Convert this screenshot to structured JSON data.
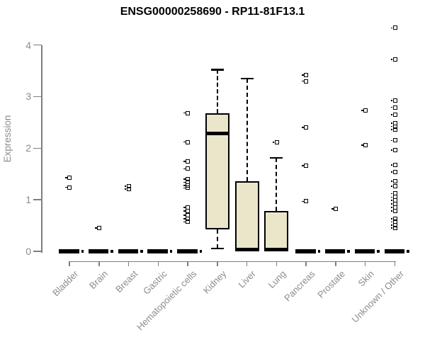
{
  "window": {
    "background": "#ffffff"
  },
  "chart_data": {
    "type": "boxplot",
    "title": "ENSG00000258690 - RP11-81F13.1",
    "ylabel": "Expression",
    "xlabel": "",
    "ylim": [
      0,
      4.4
    ],
    "yticks": [
      0,
      1,
      2,
      3,
      4
    ],
    "grid": false,
    "legend": null,
    "categories": [
      "Bladder",
      "Brain",
      "Breast",
      "Gastric",
      "Hematopoietic cells",
      "Kidney",
      "Liver",
      "Lung",
      "Pancreas",
      "Prostate",
      "Skin",
      "Unknown / Other"
    ],
    "boxes": [
      {
        "category": "Bladder",
        "q1": 0,
        "median": 0,
        "q3": 0,
        "whisker_low": 0,
        "whisker_high": 0,
        "outliers": [
          1.43,
          1.24
        ]
      },
      {
        "category": "Brain",
        "q1": 0,
        "median": 0,
        "q3": 0,
        "whisker_low": 0,
        "whisker_high": 0,
        "outliers": [
          0.45
        ]
      },
      {
        "category": "Breast",
        "q1": 0,
        "median": 0,
        "q3": 0,
        "whisker_low": 0,
        "whisker_high": 0,
        "outliers": [
          1.26,
          1.21
        ]
      },
      {
        "category": "Gastric",
        "q1": 0,
        "median": 0,
        "q3": 0,
        "whisker_low": 0,
        "whisker_high": 0,
        "outliers": []
      },
      {
        "category": "Hematopoietic cells",
        "q1": 0,
        "median": 0,
        "q3": 0,
        "whisker_low": 0,
        "whisker_high": 0,
        "outliers": [
          2.68,
          2.12,
          1.74,
          1.6,
          1.4,
          1.34,
          1.28,
          1.23,
          0.85,
          0.78,
          0.7,
          0.63,
          0.57
        ]
      },
      {
        "category": "Kidney",
        "q1": 0.43,
        "median": 2.29,
        "q3": 2.67,
        "whisker_low": 0.05,
        "whisker_high": 3.52,
        "outliers": []
      },
      {
        "category": "Liver",
        "q1": 0,
        "median": 0.03,
        "q3": 1.36,
        "whisker_low": 0,
        "whisker_high": 3.35,
        "outliers": []
      },
      {
        "category": "Lung",
        "q1": 0,
        "median": 0.03,
        "q3": 0.78,
        "whisker_low": 0,
        "whisker_high": 1.81,
        "outliers": [
          2.11
        ]
      },
      {
        "category": "Pancreas",
        "q1": 0,
        "median": 0,
        "q3": 0,
        "whisker_low": 0,
        "whisker_high": 0,
        "outliers": [
          3.42,
          3.3,
          2.4,
          1.66,
          0.97
        ]
      },
      {
        "category": "Prostate",
        "q1": 0,
        "median": 0,
        "q3": 0,
        "whisker_low": 0,
        "whisker_high": 0,
        "outliers": [
          0.82
        ]
      },
      {
        "category": "Skin",
        "q1": 0,
        "median": 0,
        "q3": 0,
        "whisker_low": 0,
        "whisker_high": 0,
        "outliers": [
          2.73,
          2.06
        ]
      },
      {
        "category": "Unknown / Other",
        "q1": 0,
        "median": 0,
        "q3": 0,
        "whisker_low": 0,
        "whisker_high": 0,
        "outliers": [
          4.33,
          3.72,
          2.92,
          2.79,
          2.65,
          2.48,
          2.42,
          2.36,
          2.15,
          1.96,
          1.67,
          1.54,
          1.36,
          1.26,
          1.12,
          1.05,
          0.99,
          0.92,
          0.85,
          0.78,
          0.63,
          0.57,
          0.51,
          0.45
        ]
      }
    ],
    "colors": {
      "box_fill": "#eae6c9",
      "box_border": "#000000",
      "median": "#000000",
      "whisker": "#000000",
      "outlier": "#000000",
      "axis_line": "#7f7f7f",
      "tick_label": "#8c8c8c",
      "title_text": "#000000"
    }
  }
}
